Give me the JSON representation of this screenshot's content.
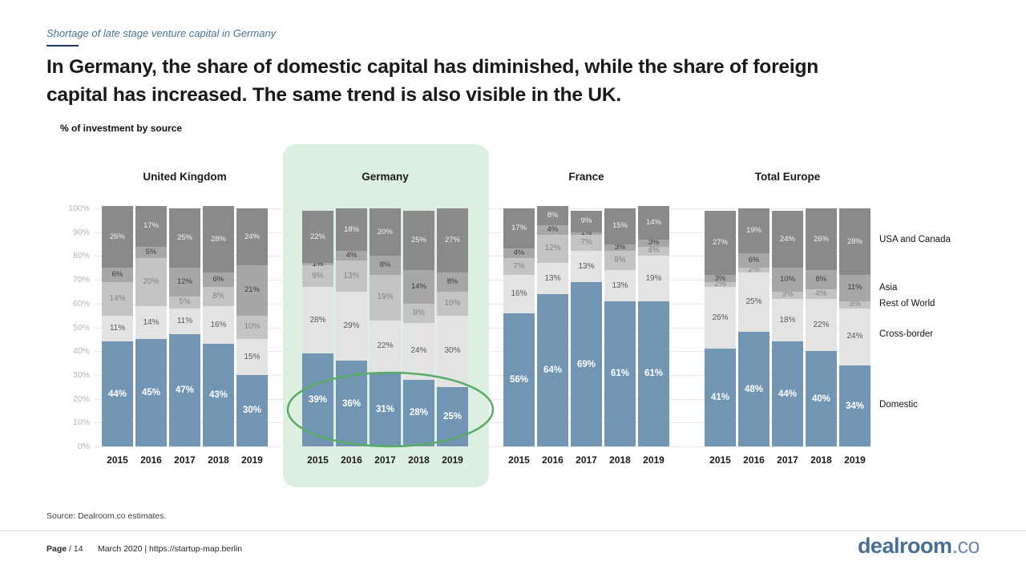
{
  "eyebrow": "Shortage of late stage venture capital in Germany",
  "title_line1": "In Germany, the share of domestic capital has diminished, while the share of foreign",
  "title_line2": "capital has increased. The same trend is also visible in the UK.",
  "axis_note": "% of investment by source",
  "colors": {
    "domestic": "#7295b3",
    "cross_border": "#e3e3e3",
    "rest_of_world": "#c4c4c4",
    "asia": "#a7a7a7",
    "usa_canada": "#8a8a8a",
    "highlight_panel_bg": "#dcefe0",
    "highlight_ring": "#57ac66",
    "eyebrow_blue": "#4a7391",
    "logo_blue": "#486f94"
  },
  "chart_data": {
    "type": "bar",
    "stacked": true,
    "unit": "%",
    "title": "% of investment by source",
    "ylim": [
      0,
      100
    ],
    "grid": true,
    "legend_position": "right",
    "yticks": [
      "0%",
      "10%",
      "20%",
      "30%",
      "40%",
      "50%",
      "60%",
      "70%",
      "80%",
      "90%",
      "100%"
    ],
    "years": [
      "2015",
      "2016",
      "2017",
      "2018",
      "2019"
    ],
    "segment_order_bottom_to_top": [
      "Domestic",
      "Cross-border",
      "Rest of World",
      "Asia",
      "USA and Canada"
    ],
    "segments": [
      {
        "name": "Domestic",
        "color": "#7295b3",
        "label_class": "lab-domestic"
      },
      {
        "name": "Cross-border",
        "color": "#e3e3e3",
        "label_class": "lab-cross"
      },
      {
        "name": "Rest of World",
        "color": "#c4c4c4",
        "label_class": "lab-row"
      },
      {
        "name": "Asia",
        "color": "#a7a7a7",
        "label_class": "lab-asia"
      },
      {
        "name": "USA and Canada",
        "color": "#8a8a8a",
        "label_class": "lab-usa"
      }
    ],
    "groups": [
      {
        "name": "United Kingdom",
        "highlighted": false,
        "values": {
          "Domestic": [
            44,
            45,
            47,
            43,
            30
          ],
          "Cross-border": [
            11,
            14,
            11,
            16,
            15
          ],
          "Rest of World": [
            14,
            20,
            5,
            8,
            10
          ],
          "Asia": [
            6,
            5,
            12,
            6,
            21
          ],
          "USA and Canada": [
            26,
            17,
            25,
            28,
            24
          ]
        }
      },
      {
        "name": "Germany",
        "highlighted": true,
        "values": {
          "Domestic": [
            39,
            36,
            31,
            28,
            25
          ],
          "Cross-border": [
            28,
            29,
            22,
            24,
            30
          ],
          "Rest of World": [
            9,
            13,
            19,
            8,
            10
          ],
          "Asia": [
            1,
            4,
            8,
            14,
            8
          ],
          "USA and Canada": [
            22,
            18,
            20,
            25,
            27
          ]
        }
      },
      {
        "name": "France",
        "highlighted": false,
        "values": {
          "Domestic": [
            56,
            64,
            69,
            61,
            61
          ],
          "Cross-border": [
            16,
            13,
            13,
            13,
            19
          ],
          "Rest of World": [
            7,
            12,
            7,
            8,
            4
          ],
          "Asia": [
            4,
            4,
            1,
            3,
            3
          ],
          "USA and Canada": [
            17,
            8,
            9,
            15,
            14
          ]
        }
      },
      {
        "name": "Total Europe",
        "highlighted": false,
        "values": {
          "Domestic": [
            41,
            48,
            44,
            40,
            34
          ],
          "Cross-border": [
            26,
            25,
            18,
            22,
            24
          ],
          "Rest of World": [
            2,
            2,
            3,
            4,
            3
          ],
          "Asia": [
            3,
            6,
            10,
            8,
            11
          ],
          "USA and Canada": [
            27,
            19,
            24,
            26,
            28
          ]
        }
      }
    ],
    "legend": [
      "USA and Canada",
      "Asia",
      "Rest of World",
      "Cross-border",
      "Domestic"
    ]
  },
  "source": "Source: Dealroom.co estimates.",
  "footer": {
    "page_label": "Page",
    "page_value": " / 14",
    "meta": "March 2020  |  https://startup-map.berlin",
    "logo_main": "dealroom",
    "logo_suffix": ".co"
  }
}
